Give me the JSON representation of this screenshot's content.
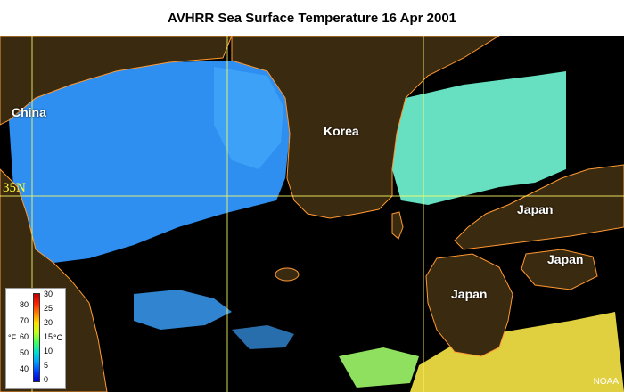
{
  "title": "AVHRR Sea Surface Temperature  16 Apr 2001",
  "labels": {
    "china": "China",
    "korea": "Korea",
    "japan_north": "Japan",
    "japan_east": "Japan",
    "japan_south": "Japan"
  },
  "gridline_label": "35N",
  "credit": "NOAA",
  "legend": {
    "fahrenheit_unit": "°F",
    "celsius_unit": "°C",
    "fahrenheit_ticks": [
      "80",
      "70",
      "60",
      "50",
      "40"
    ],
    "celsius_ticks": [
      "30",
      "25",
      "20",
      "15",
      "10",
      "5",
      "0"
    ]
  },
  "colors": {
    "land": "#3a2a10",
    "coast": "#ff9933",
    "cloud": "#000000",
    "gridline": "#ffff66",
    "sea_cold": "#2e8ff0",
    "sea_mid": "#66e0c0",
    "sea_warm": "#e0d040"
  }
}
